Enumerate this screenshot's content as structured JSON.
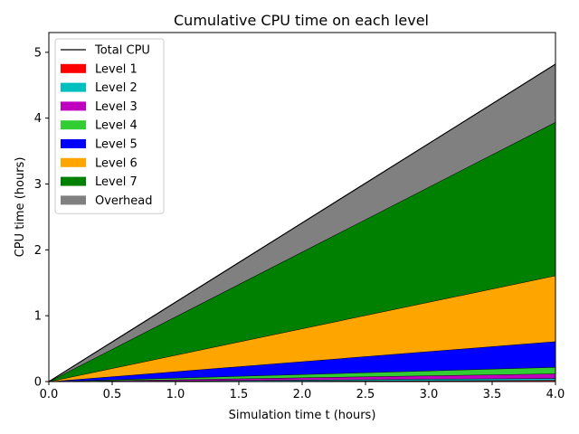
{
  "chart_data": {
    "type": "area",
    "title": "Cumulative CPU time on each level",
    "xlabel": "Simulation time t (hours)",
    "ylabel": "CPU time (hours)",
    "xlim": [
      0,
      4
    ],
    "ylim": [
      0,
      5.3
    ],
    "xticks": [
      "0.0",
      "0.5",
      "1.0",
      "1.5",
      "2.0",
      "2.5",
      "3.0",
      "3.5",
      "4.0"
    ],
    "yticks": [
      "0",
      "1",
      "2",
      "3",
      "4",
      "5"
    ],
    "legend_position": "top-left",
    "grid": false,
    "x": [
      0,
      4
    ],
    "series": [
      {
        "name": "Level 1",
        "color": "#ff0000",
        "values": [
          0,
          0.02
        ]
      },
      {
        "name": "Level 2",
        "color": "#00bfbf",
        "values": [
          0,
          0.03
        ]
      },
      {
        "name": "Level 3",
        "color": "#bf00bf",
        "values": [
          0,
          0.07
        ]
      },
      {
        "name": "Level 4",
        "color": "#32cd32",
        "values": [
          0,
          0.1
        ]
      },
      {
        "name": "Level 5",
        "color": "#0000ff",
        "values": [
          0,
          0.39
        ]
      },
      {
        "name": "Level 6",
        "color": "#ffa500",
        "values": [
          0,
          1.0
        ]
      },
      {
        "name": "Level 7",
        "color": "#008000",
        "values": [
          0,
          2.33
        ]
      },
      {
        "name": "Overhead",
        "color": "#808080",
        "values": [
          0,
          0.88
        ]
      }
    ],
    "total_line": {
      "name": "Total CPU",
      "color": "#000000",
      "values": [
        0,
        4.82
      ]
    }
  }
}
